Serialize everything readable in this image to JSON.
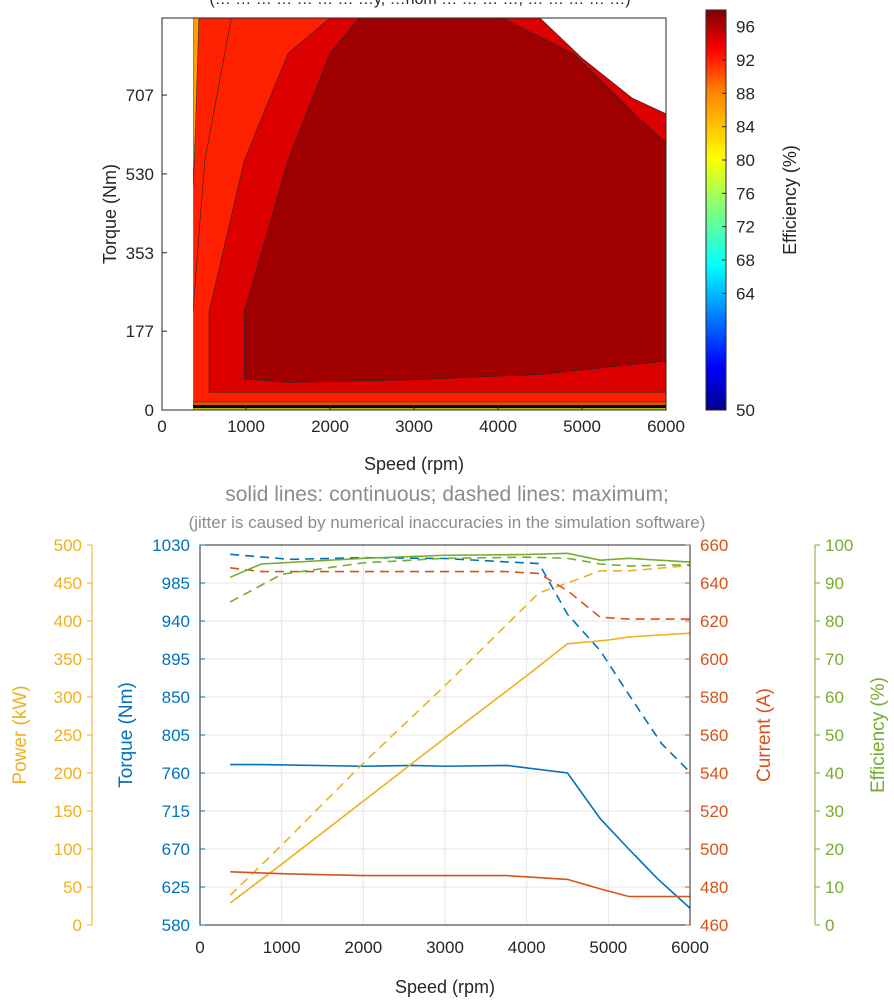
{
  "figure": {
    "top_cut_text": "(… … … … … … … …y, …nom … … … …, … … … … …)",
    "subtitle_line1": "solid lines: continuous; dashed lines: maximum;",
    "subtitle_line2": "(jitter is caused by numerical inaccuracies in the simulation software)"
  },
  "colors": {
    "power": "#EDB120",
    "torque": "#0072BD",
    "current": "#D95319",
    "efficiency": "#77AC30",
    "subtitle": "#8c8c8c",
    "axis": "#262626"
  },
  "chart_data": [
    {
      "type": "heatmap",
      "subtype": "filled-contour",
      "xlabel": "Speed (rpm)",
      "ylabel": "Torque (Nm)",
      "xlim": [
        0,
        6000
      ],
      "ylim": [
        0,
        880
      ],
      "xticks": [
        0,
        1000,
        2000,
        3000,
        4000,
        5000,
        6000
      ],
      "yticks": [
        0,
        177,
        353,
        530,
        707
      ],
      "speed_range_rpm": [
        370,
        6000
      ],
      "colorbar": {
        "label": "Efficiency (%)",
        "colormap": "jet",
        "range": [
          50,
          98
        ],
        "ticks": [
          50,
          64,
          68,
          72,
          76,
          80,
          84,
          88,
          92,
          96
        ]
      },
      "torque_envelope": {
        "speed": [
          370,
          4500,
          5000,
          5600,
          6000
        ],
        "torque": [
          880,
          880,
          790,
          700,
          665
        ]
      },
      "contours": [
        {
          "efficiency": 96,
          "speed": [
            980,
            1500,
            2000,
            2350,
            4050,
            4900,
            5650,
            6000
          ],
          "torque_top": [
            220,
            560,
            800,
            880,
            880,
            800,
            660,
            600
          ],
          "speed_bottom": [
            980,
            1500,
            3000,
            4500,
            6000
          ],
          "torque_bottom": [
            70,
            62,
            68,
            80,
            110
          ]
        },
        {
          "efficiency": 92,
          "speed": [
            560,
            980,
            1500,
            2000
          ],
          "torque_top": [
            220,
            560,
            800,
            880
          ],
          "torque_bottom": 40
        },
        {
          "efficiency": 88,
          "speed": [
            370,
            560,
            980
          ],
          "torque_top": [
            220,
            560,
            880
          ],
          "torque_bottom": 20
        }
      ]
    },
    {
      "type": "line",
      "xlabel": "Speed (rpm)",
      "xlim": [
        0,
        6000
      ],
      "xticks": [
        0,
        1000,
        2000,
        3000,
        4000,
        5000,
        6000
      ],
      "axes": {
        "power": {
          "label": "Power (kW)",
          "lim": [
            0,
            500
          ],
          "ticks": [
            0,
            50,
            100,
            150,
            200,
            250,
            300,
            350,
            400,
            450,
            500
          ]
        },
        "torque": {
          "label": "Torque (Nm)",
          "lim": [
            580,
            1030
          ],
          "ticks": [
            580,
            625,
            670,
            715,
            760,
            805,
            850,
            895,
            940,
            985,
            1030
          ]
        },
        "current": {
          "label": "Current (A)",
          "lim": [
            460,
            660
          ],
          "ticks": [
            460,
            480,
            500,
            520,
            540,
            560,
            580,
            600,
            620,
            640,
            660
          ]
        },
        "efficiency": {
          "label": "Efficiency (%)",
          "lim": [
            0,
            100
          ],
          "ticks": [
            0,
            10,
            20,
            30,
            40,
            50,
            60,
            70,
            80,
            90,
            100
          ]
        }
      },
      "series": [
        {
          "axis": "torque",
          "style": "solid",
          "x": [
            370,
            750,
            2000,
            2600,
            3000,
            3750,
            4500,
            4900,
            5250,
            5600,
            6000
          ],
          "y": [
            770,
            770,
            768,
            769,
            768,
            769,
            760,
            706,
            670,
            635,
            600
          ]
        },
        {
          "axis": "torque",
          "style": "dashed",
          "x": [
            370,
            1100,
            2000,
            3000,
            3750,
            4150,
            4500,
            4900,
            5250,
            5650,
            6000
          ],
          "y": [
            1019,
            1013,
            1015,
            1014,
            1010,
            1008,
            948,
            905,
            853,
            795,
            761
          ]
        },
        {
          "axis": "power",
          "style": "solid",
          "x": [
            370,
            1000,
            2000,
            3000,
            4000,
            4500,
            5000,
            5250,
            6000
          ],
          "y": [
            29,
            80,
            163,
            246,
            328,
            370,
            375,
            379,
            384
          ]
        },
        {
          "axis": "power",
          "style": "dashed",
          "x": [
            370,
            1000,
            2000,
            3000,
            4150,
            4500,
            4900,
            5250,
            6000
          ],
          "y": [
            39,
            105,
            213,
            315,
            437,
            450,
            466,
            466,
            473
          ]
        },
        {
          "axis": "current",
          "style": "solid",
          "x": [
            370,
            1000,
            2000,
            3000,
            3750,
            4500,
            4900,
            5250,
            6000
          ],
          "y": [
            488,
            487,
            486,
            486,
            486,
            484,
            479,
            475,
            475
          ]
        },
        {
          "axis": "current",
          "style": "dashed",
          "x": [
            370,
            750,
            2000,
            3000,
            3750,
            4150,
            4500,
            4900,
            5250,
            6000
          ],
          "y": [
            648,
            646,
            646,
            646,
            646,
            645,
            636,
            622,
            621,
            621
          ]
        },
        {
          "axis": "efficiency",
          "style": "solid",
          "x": [
            370,
            750,
            2000,
            3000,
            4000,
            4500,
            4900,
            5250,
            6000
          ],
          "y": [
            91.5,
            95,
            96.5,
            97.3,
            97.5,
            97.8,
            96,
            96.5,
            95.5
          ]
        },
        {
          "axis": "efficiency",
          "style": "dashed",
          "x": [
            370,
            1000,
            2000,
            3000,
            4000,
            4500,
            4900,
            5250,
            6000
          ],
          "y": [
            85,
            92.3,
            95.3,
            96.5,
            96.8,
            96.5,
            95,
            94.5,
            94.8
          ]
        }
      ]
    }
  ]
}
